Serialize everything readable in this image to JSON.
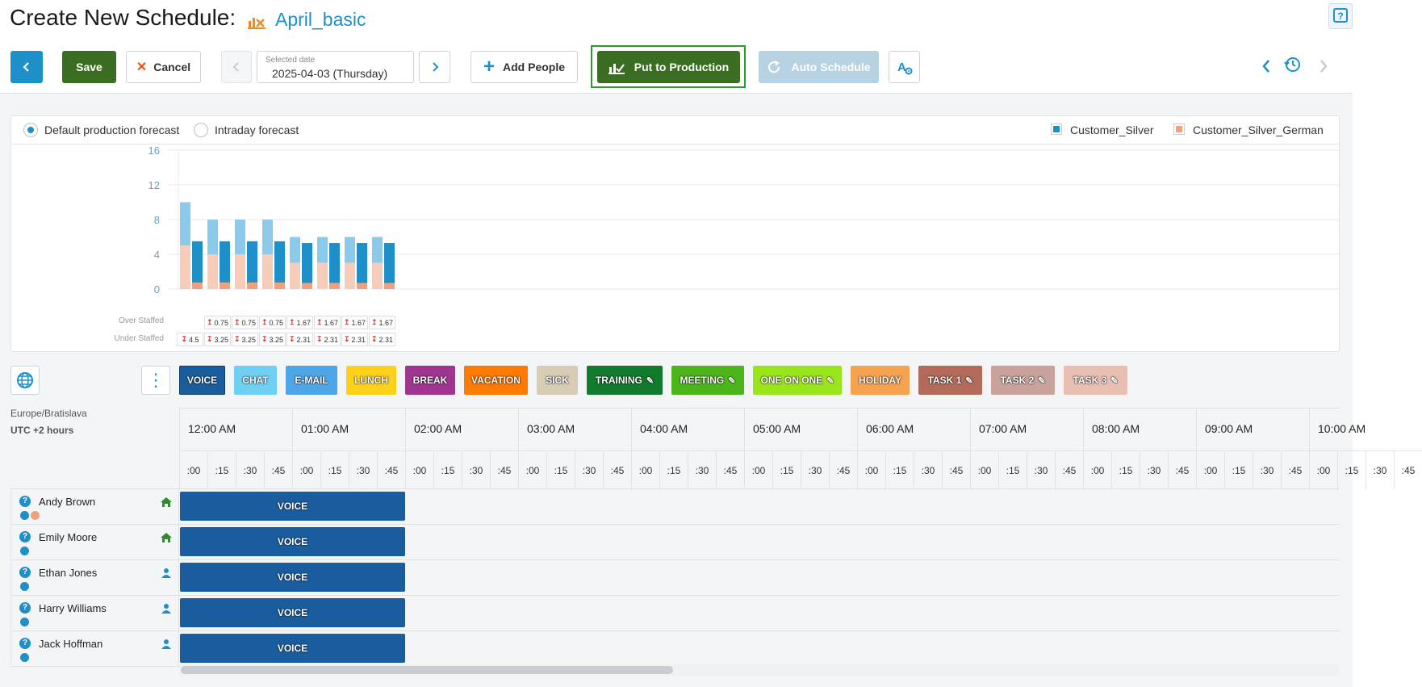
{
  "header": {
    "title": "Create New Schedule:",
    "schedule_name": "April_basic"
  },
  "toolbar": {
    "save_label": "Save",
    "cancel_label": "Cancel",
    "date_label": "Selected date",
    "date_value": "2025-04-03 (Thursday)",
    "add_people_label": "Add People",
    "put_to_production_label": "Put to Production",
    "auto_schedule_label": "Auto Schedule"
  },
  "forecast": {
    "radio_default": "Default production forecast",
    "radio_intraday": "Intraday forecast",
    "selected": "default",
    "legend": [
      {
        "name": "Customer_Silver",
        "color": "#1e90c9"
      },
      {
        "name": "Customer_Silver_German",
        "color": "#f0a07c"
      }
    ],
    "over_staffed_label": "Over Staffed",
    "under_staffed_label": "Under Staffed"
  },
  "chart_data": {
    "type": "bar",
    "y_ticks": [
      "16",
      "12",
      "8",
      "4",
      "0"
    ],
    "ylim": [
      0,
      16
    ],
    "series": [
      {
        "name": "Customer_Silver",
        "color": "#1e90c9"
      },
      {
        "name": "Customer_Silver_German",
        "color": "#f0a07c"
      }
    ],
    "groups": [
      {
        "forecast_silver": 5,
        "forecast_german": 5,
        "staffed_silver": 4.75,
        "staffed_german": 0.75,
        "over": "",
        "under": "4.5"
      },
      {
        "forecast_silver": 4,
        "forecast_german": 4,
        "staffed_silver": 4.75,
        "staffed_german": 0.75,
        "over": "0.75",
        "under": "3.25"
      },
      {
        "forecast_silver": 4,
        "forecast_german": 4,
        "staffed_silver": 4.75,
        "staffed_german": 0.75,
        "over": "0.75",
        "under": "3.25"
      },
      {
        "forecast_silver": 4,
        "forecast_german": 4,
        "staffed_silver": 4.75,
        "staffed_german": 0.75,
        "over": "0.75",
        "under": "3.25"
      },
      {
        "forecast_silver": 3,
        "forecast_german": 3,
        "staffed_silver": 4.6,
        "staffed_german": 0.7,
        "over": "1.67",
        "under": "2.31"
      },
      {
        "forecast_silver": 3,
        "forecast_german": 3,
        "staffed_silver": 4.6,
        "staffed_german": 0.7,
        "over": "1.67",
        "under": "2.31"
      },
      {
        "forecast_silver": 3,
        "forecast_german": 3,
        "staffed_silver": 4.6,
        "staffed_german": 0.7,
        "over": "1.67",
        "under": "2.31"
      },
      {
        "forecast_silver": 3,
        "forecast_german": 3,
        "staffed_silver": 4.6,
        "staffed_german": 0.7,
        "over": "1.67",
        "under": "2.31"
      }
    ]
  },
  "activities": [
    {
      "label": "VOICE",
      "color": "#1a5d9e",
      "pinned": false,
      "selected": true
    },
    {
      "label": "CHAT",
      "color": "#6fd0f6",
      "pinned": false
    },
    {
      "label": "E-MAIL",
      "color": "#4ea6e8",
      "pinned": false
    },
    {
      "label": "LUNCH",
      "color": "#ffd11a",
      "pinned": false
    },
    {
      "label": "BREAK",
      "color": "#a0358f",
      "pinned": false
    },
    {
      "label": "VACATION",
      "color": "#ff7a00",
      "pinned": false
    },
    {
      "label": "SICK",
      "color": "#d6cdb4",
      "pinned": false
    },
    {
      "label": "TRAINING",
      "color": "#127a2c",
      "pinned": true
    },
    {
      "label": "MEETING",
      "color": "#4bb51b",
      "pinned": true
    },
    {
      "label": "ONE ON ONE",
      "color": "#9be51c",
      "pinned": true
    },
    {
      "label": "HOLIDAY",
      "color": "#f7a24f",
      "pinned": false
    },
    {
      "label": "TASK 1",
      "color": "#b26b5a",
      "pinned": true
    },
    {
      "label": "TASK 2",
      "color": "#c9a39b",
      "pinned": true
    },
    {
      "label": "TASK 3",
      "color": "#e9bfb4",
      "pinned": true
    }
  ],
  "timezone": {
    "name": "Europe/Bratislava",
    "offset": "UTC +2 hours"
  },
  "timeline": {
    "hours": [
      "12:00 AM",
      "01:00 AM",
      "02:00 AM",
      "03:00 AM",
      "04:00 AM",
      "05:00 AM",
      "06:00 AM",
      "07:00 AM",
      "08:00 AM",
      "09:00 AM",
      "10:00 AM"
    ],
    "quarters": [
      ":00",
      ":15",
      ":30",
      ":45"
    ]
  },
  "employees": [
    {
      "name": "Andy Brown",
      "icon": "home-icon",
      "dots": [
        "#1e90c9",
        "#f0a07c"
      ],
      "shift": "VOICE"
    },
    {
      "name": "Emily Moore",
      "icon": "home-icon",
      "dots": [
        "#1e90c9"
      ],
      "shift": "VOICE"
    },
    {
      "name": "Ethan Jones",
      "icon": "person-icon",
      "dots": [
        "#1e90c9"
      ],
      "shift": "VOICE"
    },
    {
      "name": "Harry Williams",
      "icon": "person-icon",
      "dots": [
        "#1e90c9"
      ],
      "shift": "VOICE"
    },
    {
      "name": "Jack Hoffman",
      "icon": "person-icon",
      "dots": [
        "#1e90c9"
      ],
      "shift": "VOICE"
    }
  ]
}
